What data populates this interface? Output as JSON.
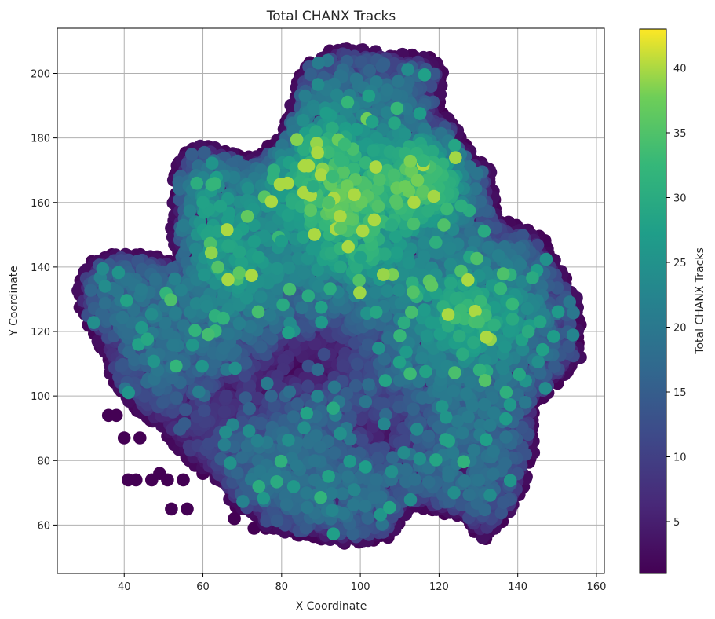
{
  "chart_data": {
    "type": "scatter",
    "title": "Total CHANX Tracks",
    "xlabel": "X Coordinate",
    "ylabel": "Y Coordinate",
    "xlim": [
      23,
      162
    ],
    "ylim": [
      45,
      214
    ],
    "xticks": [
      40,
      60,
      80,
      100,
      120,
      140,
      160
    ],
    "yticks": [
      60,
      80,
      100,
      120,
      140,
      160,
      180,
      200
    ],
    "grid": true,
    "colormap": "viridis",
    "colorbar": {
      "label": "Total CHANX Tracks",
      "min": 1,
      "max": 43,
      "ticks": [
        5,
        10,
        15,
        20,
        25,
        30,
        35,
        40
      ]
    },
    "marker_color_low": "#440154",
    "marker_color_high": "#fde725",
    "notable_points": [
      {
        "x": 95,
        "y": 152,
        "value": 36
      },
      {
        "x": 130,
        "y": 123,
        "value": 34
      },
      {
        "x": 92,
        "y": 160,
        "value": 35
      },
      {
        "x": 93,
        "y": 168,
        "value": 33
      },
      {
        "x": 113,
        "y": 126,
        "value": 34
      },
      {
        "x": 122,
        "y": 158,
        "value": 33
      },
      {
        "x": 116,
        "y": 173,
        "value": 32
      },
      {
        "x": 95,
        "y": 173,
        "value": 32
      },
      {
        "x": 88,
        "y": 165,
        "value": 30
      },
      {
        "x": 60,
        "y": 160,
        "value": 28
      },
      {
        "x": 108,
        "y": 153,
        "value": 30
      },
      {
        "x": 126,
        "y": 113,
        "value": 30
      },
      {
        "x": 123,
        "y": 135,
        "value": 29
      },
      {
        "x": 100,
        "y": 143,
        "value": 28
      },
      {
        "x": 104,
        "y": 126,
        "value": 29
      },
      {
        "x": 80,
        "y": 148,
        "value": 27
      },
      {
        "x": 134,
        "y": 122,
        "value": 31
      },
      {
        "x": 78,
        "y": 170,
        "value": 31
      },
      {
        "x": 103,
        "y": 185,
        "value": 28
      },
      {
        "x": 96,
        "y": 178,
        "value": 33
      }
    ]
  }
}
